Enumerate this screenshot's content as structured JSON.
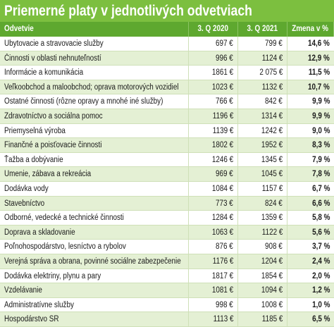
{
  "header": {
    "title": "Priemerné platy v jednotlivých odvetviach"
  },
  "table": {
    "columns": [
      "Odvetvie",
      "3. Q 2020",
      "3. Q 2021",
      "Zmena v %"
    ],
    "rows": [
      [
        "Ubytovacie a stravovacie služby",
        "697 €",
        "799 €",
        "14,6 %"
      ],
      [
        "Činnosti v oblasti nehnuteľností",
        "996 €",
        "1124 €",
        "12,9 %"
      ],
      [
        "Informácie a komunikácia",
        "1861 €",
        "2 075 €",
        "11,5 %"
      ],
      [
        "Veľkoobchod a maloobchod; oprava motorových vozidiel",
        "1023 €",
        "1132 €",
        "10,7 %"
      ],
      [
        "Ostatné činnosti (rôzne opravy a mnohé iné služby)",
        "766 €",
        "842 €",
        "9,9 %"
      ],
      [
        "Zdravotníctvo a sociálna pomoc",
        "1196 €",
        "1314 €",
        "9,9 %"
      ],
      [
        "Priemyselná výroba",
        "1139 €",
        "1242 €",
        "9,0 %"
      ],
      [
        "Finančné a poisťovacie činnosti",
        "1802 €",
        "1952 €",
        "8,3 %"
      ],
      [
        "Ťažba a dobývanie",
        "1246 €",
        "1345 €",
        "7,9 %"
      ],
      [
        "Umenie, zábava a rekreácia",
        "969 €",
        "1045 €",
        "7,8 %"
      ],
      [
        "Dodávka vody",
        "1084 €",
        "1157 €",
        "6,7 %"
      ],
      [
        "Stavebníctvo",
        "773 €",
        "824 €",
        "6,6 %"
      ],
      [
        "Odborné, vedecké a technické činnosti",
        "1284 €",
        "1359 €",
        "5,8 %"
      ],
      [
        "Doprava a skladovanie",
        "1063 €",
        "1122 €",
        "5,6 %"
      ],
      [
        "Poľnohospodárstvo, lesníctvo a rybolov",
        "876 €",
        "908 €",
        "3,7 %"
      ],
      [
        "Verejná správa a obrana, povinné sociálne zabezpečenie",
        "1176 €",
        "1204 €",
        "2,4 %"
      ],
      [
        "Dodávka elektriny, plynu a pary",
        "1817 €",
        "1854 €",
        "2,0 %"
      ],
      [
        "Vzdelávanie",
        "1081 €",
        "1094 €",
        "1,2 %"
      ],
      [
        "Administratívne služby",
        "998 €",
        "1008 €",
        "1,0 %"
      ],
      [
        "Hospodárstvo SR",
        "1113 €",
        "1185 €",
        "6,5 %"
      ]
    ]
  }
}
